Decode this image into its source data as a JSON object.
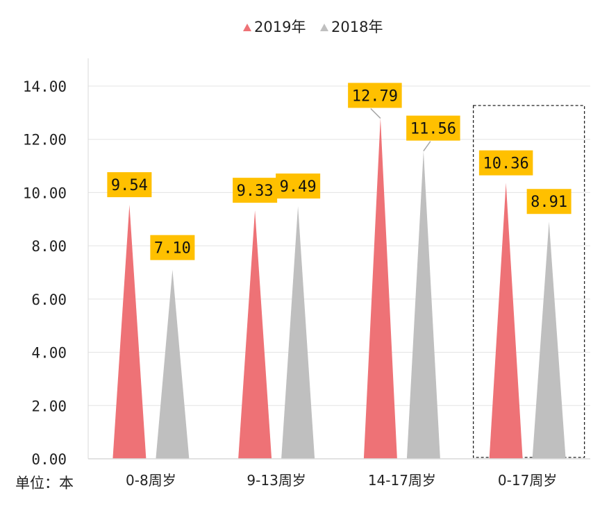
{
  "chart_data": {
    "type": "bar",
    "title": "",
    "categories": [
      "0-8周岁",
      "9-13周岁",
      "14-17周岁",
      "0-17周岁"
    ],
    "series": [
      {
        "name": "2019年",
        "values": [
          9.54,
          9.33,
          12.79,
          10.36
        ],
        "color": "#EE7276"
      },
      {
        "name": "2018年",
        "values": [
          7.1,
          9.49,
          11.56,
          8.91
        ],
        "color": "#BFBFBF"
      }
    ],
    "data_labels": [
      [
        "9.54",
        "9.33",
        "12.79",
        "10.36"
      ],
      [
        "7.10",
        "9.49",
        "11.56",
        "8.91"
      ]
    ],
    "ylim": [
      0,
      14
    ],
    "yticks": [
      "0.00",
      "2.00",
      "4.00",
      "6.00",
      "8.00",
      "10.00",
      "12.00",
      "14.00"
    ],
    "unit_label": "单位：本",
    "legend_position": "top-center",
    "highlighted_category": "0-17周岁",
    "label_bg_color": "#FFC000",
    "grid": true
  }
}
